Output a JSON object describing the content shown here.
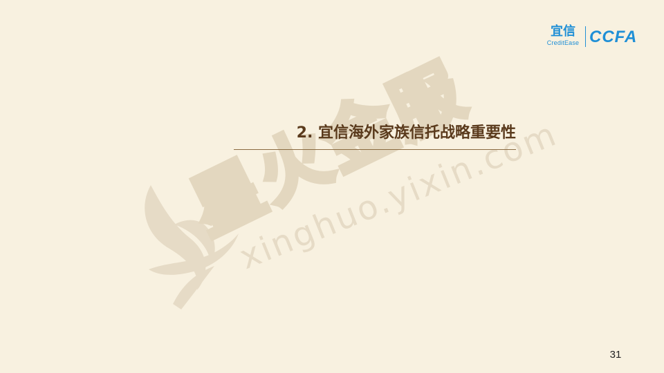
{
  "logo": {
    "brand_cn": "宜信",
    "brand_en": "CreditEase",
    "partner": "CCFA",
    "color": "#1f8fd6"
  },
  "title": "2. 宜信海外家族信托战略重要性",
  "watermark": {
    "text_cn": "星火金服",
    "text_url": "xinghuo.yixin.com",
    "color": "#e5dac4"
  },
  "page_number": "31",
  "colors": {
    "background": "#f8f1e0",
    "title": "#5a3a1c",
    "rule": "#8a6a40"
  }
}
